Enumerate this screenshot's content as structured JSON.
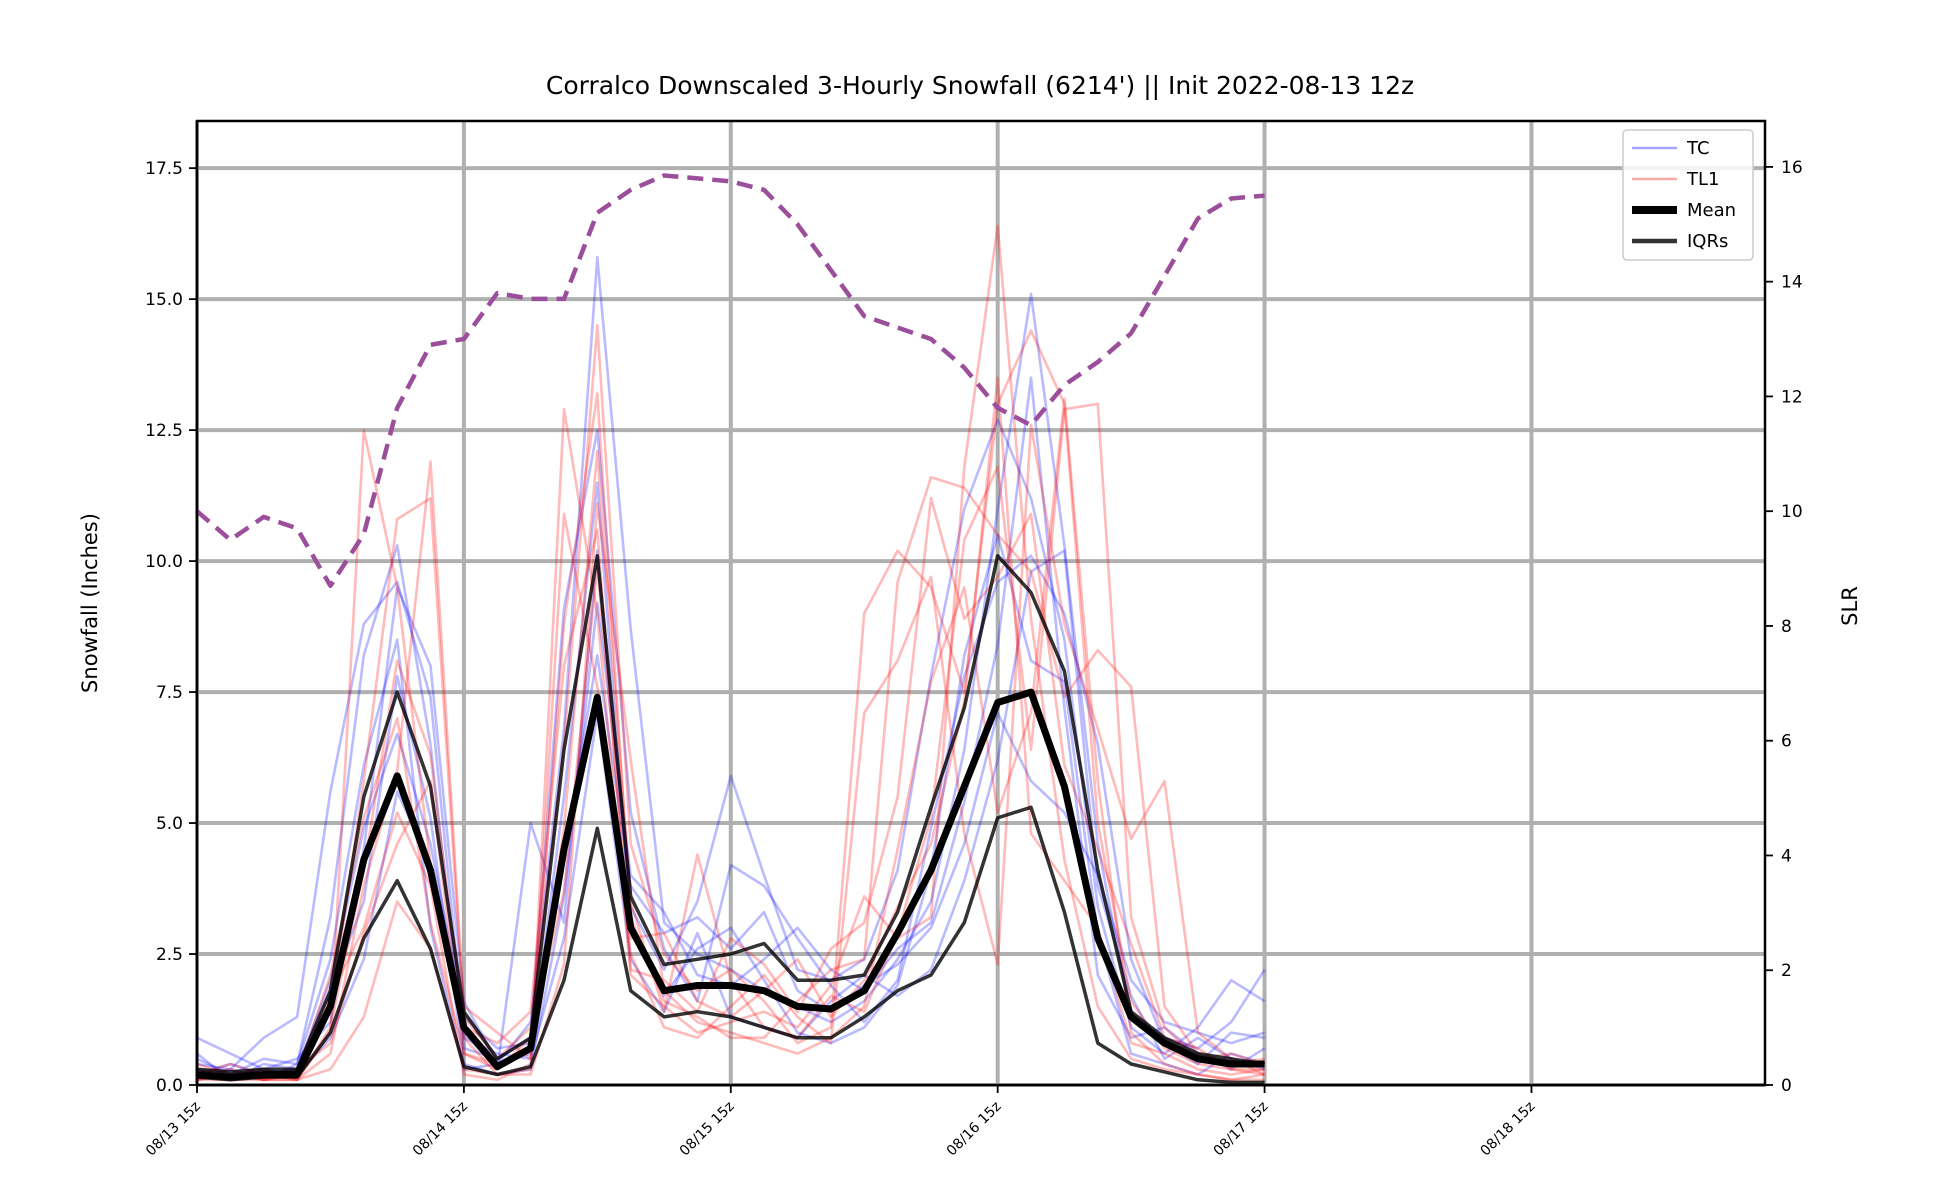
{
  "chart_data": {
    "type": "line",
    "title": "Corralco Downscaled 3-Hourly Snowfall (6214') || Init 2022-08-13 12z",
    "ylabel": "Snowfall (Inches)",
    "y2label": "SLR",
    "ylim": [
      0,
      18.4
    ],
    "y2lim": [
      0,
      16.8
    ],
    "yticks": [
      "0.0",
      "2.5",
      "5.0",
      "7.5",
      "10.0",
      "12.5",
      "15.0",
      "17.5"
    ],
    "y2ticks": [
      "0",
      "2",
      "4",
      "6",
      "8",
      "10",
      "12",
      "14",
      "16"
    ],
    "xticks": [
      "08/13 15z",
      "08/14 15z",
      "08/15 15z",
      "08/16 15z",
      "08/17 15z",
      "08/18 15z"
    ],
    "x_hours": [
      0,
      3,
      6,
      9,
      12,
      15,
      18,
      21,
      24,
      27,
      30,
      33,
      36,
      39,
      42,
      45,
      48,
      51,
      54,
      57,
      60,
      63,
      66,
      69,
      72,
      75,
      78,
      81,
      84,
      87,
      90,
      93,
      96
    ],
    "x_unit": "hours after 08/13 15z",
    "xlim_hours": [
      0,
      141
    ],
    "grid": true,
    "legend_position": "top-right",
    "legend": [
      {
        "label": "TC",
        "color": "#0000ff",
        "style": "thin-transparent"
      },
      {
        "label": "TL1",
        "color": "#ff0000",
        "style": "thin-transparent"
      },
      {
        "label": "Mean",
        "color": "#000000",
        "style": "thick"
      },
      {
        "label": "IQRs",
        "color": "#000000",
        "style": "medium"
      }
    ],
    "series": [
      {
        "name": "Mean",
        "color": "#000000",
        "width": 7,
        "values": [
          0.2,
          0.15,
          0.2,
          0.2,
          1.5,
          4.3,
          5.9,
          4.1,
          1.1,
          0.35,
          0.7,
          4.5,
          7.4,
          3.0,
          1.8,
          1.9,
          1.9,
          1.8,
          1.5,
          1.45,
          1.8,
          2.9,
          4.1,
          5.7,
          7.3,
          7.5,
          5.7,
          2.8,
          1.3,
          0.8,
          0.5,
          0.4,
          0.4
        ]
      },
      {
        "name": "IQR Upper",
        "color": "#000000",
        "width": 3.5,
        "values": [
          0.3,
          0.25,
          0.3,
          0.3,
          1.8,
          5.5,
          7.5,
          5.7,
          1.4,
          0.5,
          0.9,
          6.4,
          10.1,
          3.6,
          2.3,
          2.4,
          2.5,
          2.7,
          2.0,
          2.0,
          2.1,
          3.3,
          5.3,
          7.2,
          10.1,
          9.4,
          7.9,
          4.1,
          1.4,
          0.9,
          0.6,
          0.5,
          0.4
        ]
      },
      {
        "name": "IQR Lower",
        "color": "#000000",
        "width": 3.5,
        "values": [
          0.15,
          0.1,
          0.15,
          0.15,
          1.0,
          2.8,
          3.9,
          2.6,
          0.35,
          0.2,
          0.35,
          2.0,
          4.9,
          1.8,
          1.3,
          1.4,
          1.3,
          1.1,
          0.9,
          0.9,
          1.3,
          1.8,
          2.1,
          3.1,
          5.1,
          5.3,
          3.3,
          0.8,
          0.4,
          0.25,
          0.1,
          0.05,
          0.05
        ]
      },
      {
        "name": "SLR",
        "axis": "y2",
        "color": "#9b4f9b",
        "dashed": true,
        "values": [
          10.0,
          9.5,
          9.9,
          9.7,
          8.7,
          9.6,
          11.8,
          12.9,
          13.0,
          13.8,
          13.7,
          13.7,
          15.2,
          15.6,
          15.85,
          15.8,
          15.75,
          15.6,
          15.0,
          14.2,
          13.4,
          13.2,
          13.0,
          12.5,
          11.8,
          11.5,
          12.2,
          12.6,
          13.1,
          14.1,
          15.1,
          15.45,
          15.5
        ]
      }
    ],
    "ensemble_members": [
      {
        "name": "TC",
        "color": "#0000ff",
        "values": [
          0.9,
          0.6,
          0.3,
          0.5,
          1.2,
          4.5,
          9.5,
          8.0,
          1.6,
          0.4,
          1.2,
          6.8,
          15.8,
          8.7,
          3.1,
          2.5,
          2.2,
          1.8,
          1.5,
          1.2,
          1.6,
          2.4,
          3.5,
          6.4,
          11.0,
          15.1,
          10.3,
          4.6,
          1.3,
          0.9,
          0.7,
          1.2,
          2.2
        ]
      },
      {
        "name": "TC",
        "color": "#0000ff",
        "values": [
          0.4,
          0.3,
          0.9,
          1.3,
          5.6,
          8.8,
          9.6,
          7.4,
          1.0,
          0.3,
          5.0,
          3.1,
          10.2,
          3.4,
          2.2,
          3.5,
          5.9,
          4.0,
          2.2,
          2.0,
          2.4,
          4.1,
          7.8,
          11.0,
          12.7,
          11.2,
          8.5,
          3.4,
          1.1,
          0.6,
          1.1,
          2.0,
          1.6
        ]
      },
      {
        "name": "TC",
        "color": "#0000ff",
        "values": [
          0.3,
          0.2,
          0.5,
          0.4,
          3.2,
          8.2,
          10.3,
          6.5,
          0.7,
          0.5,
          0.9,
          9.1,
          12.5,
          5.2,
          2.6,
          1.6,
          4.2,
          3.8,
          2.8,
          1.9,
          1.2,
          2.0,
          4.9,
          7.8,
          9.6,
          10.1,
          9.0,
          6.5,
          2.4,
          0.8,
          0.4,
          1.0,
          0.9
        ]
      },
      {
        "name": "TC",
        "color": "#0000ff",
        "values": [
          0.2,
          0.4,
          0.2,
          0.3,
          1.8,
          3.5,
          7.8,
          5.1,
          0.4,
          0.2,
          0.3,
          3.6,
          9.2,
          4.0,
          3.3,
          2.1,
          1.9,
          2.4,
          3.0,
          2.2,
          1.8,
          2.6,
          3.1,
          5.4,
          8.4,
          13.5,
          7.2,
          2.1,
          0.9,
          1.1,
          0.6,
          0.3,
          0.7
        ]
      },
      {
        "name": "TC",
        "color": "#0000ff",
        "values": [
          0.5,
          0.2,
          0.3,
          0.2,
          0.9,
          2.4,
          5.6,
          4.2,
          0.9,
          0.6,
          0.5,
          2.8,
          7.1,
          2.4,
          1.4,
          2.9,
          1.3,
          1.1,
          0.9,
          1.6,
          2.1,
          1.7,
          2.2,
          3.9,
          6.2,
          9.8,
          10.2,
          3.8,
          1.7,
          0.5,
          0.9,
          0.5,
          0.3
        ]
      },
      {
        "name": "TC",
        "color": "#0000ff",
        "values": [
          0.1,
          0.3,
          0.1,
          0.4,
          2.4,
          6.1,
          8.5,
          3.0,
          0.3,
          0.4,
          0.6,
          5.5,
          11.5,
          3.0,
          1.7,
          2.6,
          3.0,
          2.0,
          1.0,
          0.8,
          1.1,
          1.9,
          4.1,
          8.2,
          10.5,
          8.1,
          7.7,
          2.9,
          0.6,
          0.4,
          0.2,
          0.6,
          0.4
        ]
      },
      {
        "name": "TC",
        "color": "#0000ff",
        "values": [
          0.6,
          0.1,
          0.4,
          0.3,
          2.0,
          4.9,
          6.7,
          4.6,
          1.3,
          0.7,
          0.8,
          4.4,
          8.2,
          3.8,
          2.9,
          3.2,
          2.6,
          3.3,
          1.8,
          1.4,
          1.9,
          2.3,
          3.0,
          4.6,
          7.1,
          5.8,
          5.2,
          4.0,
          2.0,
          1.2,
          1.0,
          0.8,
          1.0
        ]
      },
      {
        "name": "TL1",
        "color": "#ff0000",
        "values": [
          0.2,
          0.1,
          0.1,
          0.1,
          1.0,
          12.5,
          9.5,
          4.2,
          0.9,
          0.2,
          0.3,
          12.9,
          9.0,
          2.1,
          1.5,
          1.0,
          1.2,
          1.4,
          1.1,
          1.9,
          3.6,
          2.8,
          3.2,
          11.8,
          16.4,
          8.9,
          4.3,
          1.5,
          0.5,
          0.3,
          0.2,
          0.1,
          0.2
        ]
      },
      {
        "name": "TL1",
        "color": "#ff0000",
        "values": [
          0.1,
          0.2,
          0.1,
          0.2,
          1.4,
          5.8,
          10.8,
          11.2,
          1.3,
          0.5,
          1.1,
          6.5,
          14.5,
          4.6,
          2.5,
          1.8,
          2.2,
          1.6,
          0.8,
          1.1,
          9.0,
          10.2,
          9.5,
          7.5,
          13.0,
          14.4,
          13.0,
          5.0,
          1.6,
          0.7,
          0.4,
          0.3,
          0.3
        ]
      },
      {
        "name": "TL1",
        "color": "#ff0000",
        "values": [
          0.3,
          0.1,
          0.2,
          0.1,
          0.6,
          3.8,
          6.0,
          11.9,
          1.5,
          1.0,
          0.5,
          8.8,
          13.2,
          3.2,
          1.6,
          1.3,
          0.9,
          0.9,
          1.6,
          2.2,
          2.4,
          9.6,
          11.6,
          11.4,
          10.5,
          9.8,
          7.4,
          8.3,
          7.6,
          1.5,
          0.6,
          0.4,
          0.5
        ]
      },
      {
        "name": "TL1",
        "color": "#ff0000",
        "values": [
          0.2,
          0.3,
          0.1,
          0.1,
          0.3,
          1.3,
          3.5,
          2.6,
          0.3,
          0.2,
          0.2,
          2.3,
          11.1,
          6.2,
          1.8,
          1.2,
          1.0,
          0.8,
          0.6,
          0.9,
          1.5,
          4.5,
          7.7,
          9.5,
          5.2,
          7.1,
          13.1,
          5.8,
          1.0,
          0.4,
          0.2,
          0.1,
          0.1
        ]
      },
      {
        "name": "TL1",
        "color": "#ff0000",
        "values": [
          0.1,
          0.1,
          0.2,
          0.3,
          0.8,
          2.9,
          4.6,
          5.8,
          0.6,
          0.4,
          0.7,
          4.9,
          12.1,
          3.5,
          1.4,
          4.4,
          2.0,
          1.1,
          0.9,
          1.7,
          1.4,
          2.9,
          5.1,
          10.4,
          11.8,
          6.4,
          12.9,
          13.0,
          3.2,
          1.1,
          0.5,
          0.6,
          0.4
        ]
      },
      {
        "name": "TL1",
        "color": "#ff0000",
        "values": [
          0.4,
          0.2,
          0.1,
          0.2,
          1.7,
          3.0,
          5.2,
          3.8,
          0.2,
          0.1,
          0.4,
          10.9,
          7.6,
          2.5,
          1.1,
          0.9,
          1.5,
          2.1,
          1.3,
          0.8,
          7.1,
          8.1,
          9.7,
          4.8,
          2.3,
          12.6,
          8.8,
          6.8,
          4.7,
          5.8,
          1.0,
          0.5,
          0.2
        ]
      },
      {
        "name": "TL1",
        "color": "#ff0000",
        "values": [
          0.2,
          0.4,
          0.2,
          0.2,
          2.1,
          5.1,
          7.0,
          3.1,
          0.6,
          0.3,
          0.9,
          3.7,
          9.9,
          2.8,
          2.9,
          1.6,
          1.3,
          1.8,
          2.4,
          1.3,
          2.0,
          3.4,
          4.6,
          7.3,
          13.5,
          4.8,
          3.9,
          3.0,
          0.8,
          0.6,
          0.3,
          0.2,
          0.3
        ]
      },
      {
        "name": "TL1",
        "color": "#ff0000",
        "values": [
          0.1,
          0.2,
          0.3,
          0.1,
          1.1,
          4.1,
          8.1,
          6.3,
          1.1,
          0.8,
          1.4,
          8.0,
          10.6,
          2.2,
          2.0,
          1.4,
          2.8,
          2.3,
          1.4,
          2.6,
          3.1,
          5.5,
          11.2,
          8.9,
          9.7,
          10.9,
          6.1,
          4.5,
          2.7,
          0.9,
          0.7,
          0.3,
          0.2
        ]
      }
    ]
  }
}
